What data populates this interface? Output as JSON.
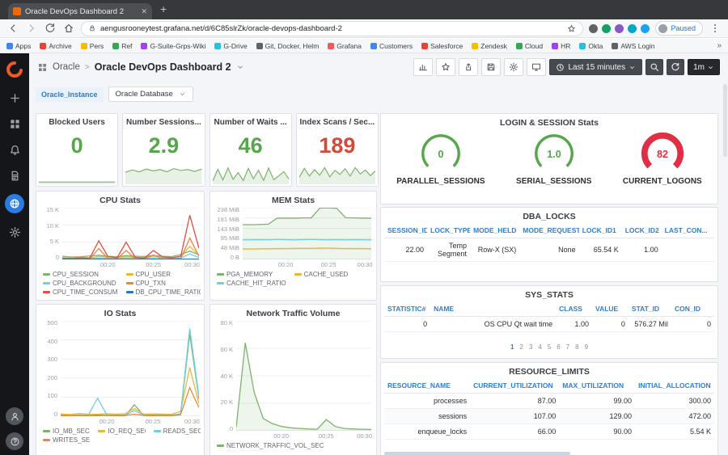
{
  "browser": {
    "tab_title": "Oracle DevOps Dashboard 2",
    "new_tab_label": "+",
    "url": "aengusrooneytest.grafana.net/d/6C85slrZk/oracle-devops-dashboard-2",
    "paused_label": "Paused",
    "bookmarks_overflow": "»",
    "bookmarks": [
      "Apps",
      "Archive",
      "Pers",
      "Ref",
      "G-Suite-Grps-Wiki",
      "G-Drive",
      "Git, Docker, Helm",
      "Grafana",
      "Customers",
      "Salesforce",
      "Zendesk",
      "Cloud",
      "HR",
      "Okta",
      "AWS Login"
    ]
  },
  "sidebar": {
    "icons": [
      "create",
      "dashboards",
      "alerting",
      "documents",
      "world",
      "settings"
    ],
    "active_icon": "world",
    "bottom_icons": [
      "user-avatar",
      "help"
    ]
  },
  "header": {
    "folder": "Oracle",
    "separator": ">",
    "title": "Oracle DevOps Dashboard 2",
    "tools": [
      "add-panel",
      "star",
      "share",
      "save",
      "settings",
      "tv-mode"
    ],
    "time_range": "Last 15 minutes",
    "refresh_interval": "1m"
  },
  "variables": {
    "name": "Oracle_Instance",
    "value": "Oracle Database"
  },
  "stat_panels": [
    {
      "title": "Blocked Users",
      "value": "0",
      "value_color": "#56a64b",
      "spark_color": "#7eb26d",
      "spark_max": 1,
      "spark": [
        0.06,
        0.06,
        0.06,
        0.06,
        0.06,
        0.06,
        0.06,
        0.06,
        0.06,
        0.06,
        0.06,
        0.06
      ]
    },
    {
      "title": "Number Sessions...",
      "value": "2.9",
      "value_color": "#56a64b",
      "spark_color": "#7eb26d",
      "spark_max": 3.5,
      "spark": [
        2.3,
        2.8,
        2.4,
        3.0,
        2.6,
        2.9,
        2.4,
        3.1,
        2.7,
        2.9,
        2.5,
        3.0
      ]
    },
    {
      "title": "Number of Waits ...",
      "value": "46",
      "value_color": "#56a64b",
      "spark_color": "#7eb26d",
      "spark_max": 50,
      "spark": [
        6,
        42,
        9,
        46,
        11,
        32,
        7,
        45,
        13,
        39,
        8,
        46,
        10,
        22,
        35,
        12
      ]
    },
    {
      "title": "Index Scans / Sec...",
      "value": "189",
      "value_color": "#d44a3a",
      "spark_color": "#7eb26d",
      "spark_max": 200,
      "spark": [
        70,
        180,
        85,
        165,
        95,
        189,
        75,
        155,
        105,
        175,
        85,
        189,
        110,
        160,
        90,
        150
      ]
    }
  ],
  "login_panel": {
    "title": "LOGIN & SESSION Stats",
    "gauges": [
      {
        "label": "PARALLEL_SESSIONS",
        "value": "0",
        "color": "#56a64b",
        "ring_width": 3.5
      },
      {
        "label": "SERIAL_SESSIONS",
        "value": "1.0",
        "color": "#56a64b",
        "ring_width": 3.5
      },
      {
        "label": "CURRENT_LOGONS",
        "value": "82",
        "color": "#e02f44",
        "ring_width": 8
      }
    ]
  },
  "cpu_chart": {
    "type": "line",
    "title": "CPU Stats",
    "ymax": 15000,
    "y_ticks": [
      "15 K",
      "10 K",
      "5 K",
      "0"
    ],
    "x_ticks": [
      "00:20",
      "00:25",
      "00:30"
    ],
    "series": [
      {
        "name": "CPU_SESSION",
        "color": "#7eb26d",
        "values": [
          900,
          700,
          800,
          1000,
          1200,
          900,
          800,
          1100,
          950,
          850,
          1150,
          900,
          820,
          1400,
          2400,
          1300
        ]
      },
      {
        "name": "CPU_USER",
        "color": "#eab839",
        "values": [
          500,
          400,
          600,
          450,
          900,
          650,
          550,
          750,
          600,
          520,
          950,
          640,
          560,
          850,
          3800,
          1100
        ]
      },
      {
        "name": "CPU_BACKGROUND",
        "color": "#6ed0e0",
        "values": [
          250,
          180,
          260,
          220,
          420,
          310,
          260,
          360,
          300,
          260,
          470,
          310,
          260,
          420,
          1600,
          520
        ]
      },
      {
        "name": "CPU_TXN",
        "color": "#ef843c",
        "values": [
          120,
          90,
          130,
          110,
          3200,
          240,
          160,
          2600,
          210,
          160,
          1300,
          220,
          160,
          320,
          6200,
          900
        ]
      },
      {
        "name": "CPU_TIME_CONSUMED",
        "color": "#e24d42",
        "values": [
          350,
          250,
          450,
          350,
          5400,
          900,
          450,
          5000,
          650,
          350,
          2600,
          750,
          450,
          950,
          12800,
          3200
        ]
      },
      {
        "name": "DB_CPU_TIME_RATIO",
        "color": "#1f78c1",
        "values": [
          60,
          55,
          65,
          60,
          70,
          62,
          58,
          66,
          61,
          59,
          68,
          62,
          58,
          72,
          90,
          75
        ]
      }
    ]
  },
  "mem_chart": {
    "type": "line",
    "title": "MEM Stats",
    "ymax": 238,
    "y_ticks": [
      "238 MiB",
      "191 MiB",
      "143 MiB",
      "95 MiB",
      "48 MiB",
      "0 B"
    ],
    "x_ticks": [
      "00:20",
      "00:25",
      "00:30"
    ],
    "series": [
      {
        "name": "PGA_MEMORY",
        "color": "#7eb26d",
        "fill": true,
        "values": [
          160,
          160,
          161,
          162,
          190,
          190,
          190,
          191,
          191,
          236,
          237,
          235,
          192,
          191,
          190,
          190
        ]
      },
      {
        "name": "CACHE_USED",
        "color": "#eab839",
        "values": [
          48,
          48,
          49,
          49,
          50,
          50,
          51,
          51,
          51,
          52,
          52,
          51,
          50,
          50,
          50,
          49
        ]
      },
      {
        "name": "CACHE_HIT_RATIO",
        "color": "#6ed0e0",
        "values": [
          90,
          90,
          91,
          90,
          92,
          91,
          90,
          91,
          92,
          91,
          90,
          91,
          90,
          91,
          90,
          90
        ]
      }
    ]
  },
  "io_chart": {
    "type": "line",
    "title": "IO Stats",
    "ymax": 500,
    "y_ticks": [
      "500",
      "400",
      "300",
      "200",
      "100",
      "0"
    ],
    "x_ticks": [
      "00:20",
      "00:25",
      "00:30"
    ],
    "series": [
      {
        "name": "IO_MB_SEC",
        "color": "#7eb26d",
        "values": [
          3,
          2,
          4,
          3,
          3,
          4,
          3,
          3,
          60,
          4,
          3,
          4,
          3,
          8,
          430,
          90
        ]
      },
      {
        "name": "IO_REQ_SEC",
        "color": "#eab839",
        "values": [
          12,
          9,
          14,
          11,
          10,
          13,
          11,
          13,
          40,
          11,
          12,
          11,
          10,
          25,
          255,
          65
        ]
      },
      {
        "name": "READS_SEC",
        "color": "#6ed0e0",
        "values": [
          6,
          5,
          7,
          6,
          95,
          7,
          6,
          6,
          30,
          6,
          6,
          7,
          6,
          12,
          460,
          100
        ]
      },
      {
        "name": "WRITES_SEC",
        "color": "#ef843c",
        "values": [
          4,
          3,
          5,
          4,
          6,
          5,
          4,
          5,
          10,
          5,
          4,
          5,
          4,
          9,
          150,
          45
        ]
      }
    ]
  },
  "net_chart": {
    "type": "area",
    "title": "Network Traffic Volume",
    "ymax": 80000,
    "y_ticks": [
      "80 K",
      "60 K",
      "40 K",
      "20 K",
      "0"
    ],
    "x_ticks": [
      "00:20",
      "00:25",
      "00:30"
    ],
    "series": [
      {
        "name": "NETWORK_TRAFFIC_VOL_SEC",
        "color": "#7eb26d",
        "fill": true,
        "values": [
          2500,
          64000,
          28000,
          9000,
          5200,
          3200,
          2200,
          1700,
          1300,
          1100,
          8200,
          3100,
          1600,
          1300,
          1100,
          950
        ]
      }
    ]
  },
  "dba_locks": {
    "title": "DBA_LOCKS",
    "columns": [
      "SESSION_ID",
      "LOCK_TYPE",
      "MODE_HELD",
      "MODE_REQUESTED",
      "LOCK_ID1",
      "LOCK_ID2",
      "LAST_CON..."
    ],
    "rows": [
      [
        "22.00",
        "Temp Segment",
        "Row-X (SX)",
        "None",
        "65.54 K",
        "1.00",
        ""
      ]
    ]
  },
  "sys_stats": {
    "title": "SYS_STATS",
    "columns": [
      "STATISTIC#",
      "NAME",
      "CLASS",
      "VALUE",
      "STAT_ID",
      "CON_ID"
    ],
    "rows": [
      [
        "0",
        "OS CPU Qt wait time",
        "1.00",
        "0",
        "576.27 Mil",
        "0"
      ]
    ],
    "pages": [
      "1",
      "2",
      "3",
      "4",
      "5",
      "6",
      "7",
      "8",
      "9"
    ]
  },
  "resource_limits": {
    "title": "RESOURCE_LIMITS",
    "columns": [
      "RESOURCE_NAME",
      "CURRENT_UTILIZATION",
      "MAX_UTILIZATION",
      "INITIAL_ALLOCATION"
    ],
    "rows": [
      [
        "processes",
        "87.00",
        "99.00",
        "300.00"
      ],
      [
        "sessions",
        "107.00",
        "129.00",
        "472.00"
      ],
      [
        "enqueue_locks",
        "66.00",
        "90.00",
        "5.54 K"
      ]
    ]
  }
}
